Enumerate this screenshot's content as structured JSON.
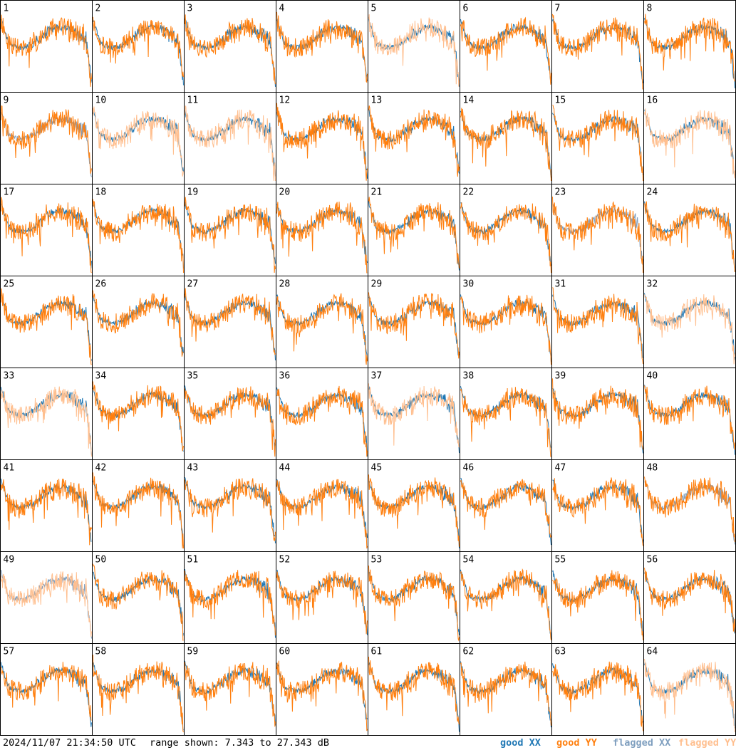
{
  "footer": {
    "timestamp": "2024/11/07 21:34:50 UTC",
    "range_text": "range shown: 7.343 to 27.343 dB",
    "legend": [
      {
        "label": "good XX",
        "color": "#1f77b4"
      },
      {
        "label": "good YY",
        "color": "#ff7f0e"
      },
      {
        "label": "flagged XX",
        "color": "#7f9fbf"
      },
      {
        "label": "flagged YY",
        "color": "#ffbf8f"
      }
    ]
  },
  "chart_data": {
    "type": "line",
    "ylim": [
      7.343,
      27.343
    ],
    "yunit": "dB",
    "grid": {
      "rows": 8,
      "cols": 8
    },
    "panels": [
      {
        "label": "1",
        "xx": "good",
        "yy": "good"
      },
      {
        "label": "2",
        "xx": "good",
        "yy": "good"
      },
      {
        "label": "3",
        "xx": "good",
        "yy": "good"
      },
      {
        "label": "4",
        "xx": "good",
        "yy": "good"
      },
      {
        "label": "5",
        "xx": "good",
        "yy": "flagged"
      },
      {
        "label": "6",
        "xx": "good",
        "yy": "good"
      },
      {
        "label": "7",
        "xx": "good",
        "yy": "good"
      },
      {
        "label": "8",
        "xx": "good",
        "yy": "good"
      },
      {
        "label": "9",
        "xx": "flagged",
        "yy": "good"
      },
      {
        "label": "10",
        "xx": "good",
        "yy": "flagged"
      },
      {
        "label": "11",
        "xx": "good",
        "yy": "flagged"
      },
      {
        "label": "12",
        "xx": "good",
        "yy": "good"
      },
      {
        "label": "13",
        "xx": "good",
        "yy": "good"
      },
      {
        "label": "14",
        "xx": "good",
        "yy": "good"
      },
      {
        "label": "15",
        "xx": "good",
        "yy": "good"
      },
      {
        "label": "16",
        "xx": "good",
        "yy": "flagged"
      },
      {
        "label": "17",
        "xx": "good",
        "yy": "good"
      },
      {
        "label": "18",
        "xx": "good",
        "yy": "good"
      },
      {
        "label": "19",
        "xx": "good",
        "yy": "good"
      },
      {
        "label": "20",
        "xx": "good",
        "yy": "good"
      },
      {
        "label": "21",
        "xx": "good",
        "yy": "good"
      },
      {
        "label": "22",
        "xx": "good",
        "yy": "good"
      },
      {
        "label": "23",
        "xx": "flagged",
        "yy": "good"
      },
      {
        "label": "24",
        "xx": "good",
        "yy": "good"
      },
      {
        "label": "25",
        "xx": "good",
        "yy": "good"
      },
      {
        "label": "26",
        "xx": "good",
        "yy": "good"
      },
      {
        "label": "27",
        "xx": "good",
        "yy": "good"
      },
      {
        "label": "28",
        "xx": "good",
        "yy": "good"
      },
      {
        "label": "29",
        "xx": "good",
        "yy": "good"
      },
      {
        "label": "30",
        "xx": "good",
        "yy": "good"
      },
      {
        "label": "31",
        "xx": "good",
        "yy": "good"
      },
      {
        "label": "32",
        "xx": "good",
        "yy": "flagged"
      },
      {
        "label": "33",
        "xx": "good",
        "yy": "flagged"
      },
      {
        "label": "34",
        "xx": "good",
        "yy": "good"
      },
      {
        "label": "35",
        "xx": "good",
        "yy": "good"
      },
      {
        "label": "36",
        "xx": "good",
        "yy": "good"
      },
      {
        "label": "37",
        "xx": "good",
        "yy": "flagged"
      },
      {
        "label": "38",
        "xx": "good",
        "yy": "good"
      },
      {
        "label": "39",
        "xx": "good",
        "yy": "good"
      },
      {
        "label": "40",
        "xx": "good",
        "yy": "good"
      },
      {
        "label": "41",
        "xx": "good",
        "yy": "good"
      },
      {
        "label": "42",
        "xx": "good",
        "yy": "good"
      },
      {
        "label": "43",
        "xx": "good",
        "yy": "good"
      },
      {
        "label": "44",
        "xx": "good",
        "yy": "good"
      },
      {
        "label": "45",
        "xx": "good",
        "yy": "good"
      },
      {
        "label": "46",
        "xx": "good",
        "yy": "good"
      },
      {
        "label": "47",
        "xx": "good",
        "yy": "good"
      },
      {
        "label": "48",
        "xx": "flagged",
        "yy": "good"
      },
      {
        "label": "49",
        "xx": "flagged",
        "yy": "flagged"
      },
      {
        "label": "50",
        "xx": "good",
        "yy": "good"
      },
      {
        "label": "51",
        "xx": "good",
        "yy": "good"
      },
      {
        "label": "52",
        "xx": "good",
        "yy": "good"
      },
      {
        "label": "53",
        "xx": "good",
        "yy": "good"
      },
      {
        "label": "54",
        "xx": "good",
        "yy": "good"
      },
      {
        "label": "55",
        "xx": "good",
        "yy": "good"
      },
      {
        "label": "56",
        "xx": "good",
        "yy": "good"
      },
      {
        "label": "57",
        "xx": "good",
        "yy": "good"
      },
      {
        "label": "58",
        "xx": "good",
        "yy": "good"
      },
      {
        "label": "59",
        "xx": "good",
        "yy": "good"
      },
      {
        "label": "60",
        "xx": "good",
        "yy": "good"
      },
      {
        "label": "61",
        "xx": "good",
        "yy": "good"
      },
      {
        "label": "62",
        "xx": "good",
        "yy": "good"
      },
      {
        "label": "63",
        "xx": "good",
        "yy": "good"
      },
      {
        "label": "64",
        "xx": "good",
        "yy": "flagged"
      }
    ]
  }
}
